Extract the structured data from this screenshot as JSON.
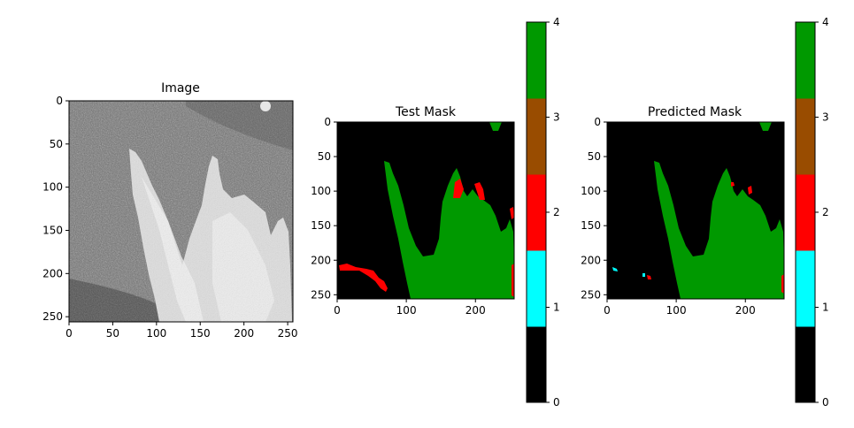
{
  "chart_data": [
    {
      "type": "heatmap",
      "title": "Image",
      "colormap": "gray",
      "x_ticks": [
        "0",
        "50",
        "100",
        "150",
        "200",
        "250"
      ],
      "y_ticks": [
        "0",
        "50",
        "100",
        "150",
        "200",
        "250"
      ],
      "xlim": [
        0,
        256
      ],
      "ylim": [
        256,
        0
      ]
    },
    {
      "type": "heatmap",
      "title": "Test Mask",
      "x_ticks": [
        "0",
        "100",
        "200"
      ],
      "y_ticks": [
        "0",
        "50",
        "100",
        "150",
        "200",
        "250"
      ],
      "xlim": [
        0,
        256
      ],
      "ylim": [
        256,
        0
      ],
      "classes_present": [
        0,
        2,
        4
      ],
      "colorbar": {
        "ticks": [
          "0",
          "1",
          "2",
          "3",
          "4"
        ],
        "colors": [
          "#000000",
          "#00ffff",
          "#ff0000",
          "#994c00",
          "#009900"
        ],
        "range": [
          0,
          4
        ]
      }
    },
    {
      "type": "heatmap",
      "title": "Predicted Mask",
      "x_ticks": [
        "0",
        "100",
        "200"
      ],
      "y_ticks": [
        "0",
        "50",
        "100",
        "150",
        "200",
        "250"
      ],
      "xlim": [
        0,
        256
      ],
      "ylim": [
        256,
        0
      ],
      "classes_present": [
        0,
        1,
        2,
        4
      ],
      "colorbar": {
        "ticks": [
          "0",
          "1",
          "2",
          "3",
          "4"
        ],
        "colors": [
          "#000000",
          "#00ffff",
          "#ff0000",
          "#994c00",
          "#009900"
        ],
        "range": [
          0,
          4
        ]
      }
    }
  ]
}
